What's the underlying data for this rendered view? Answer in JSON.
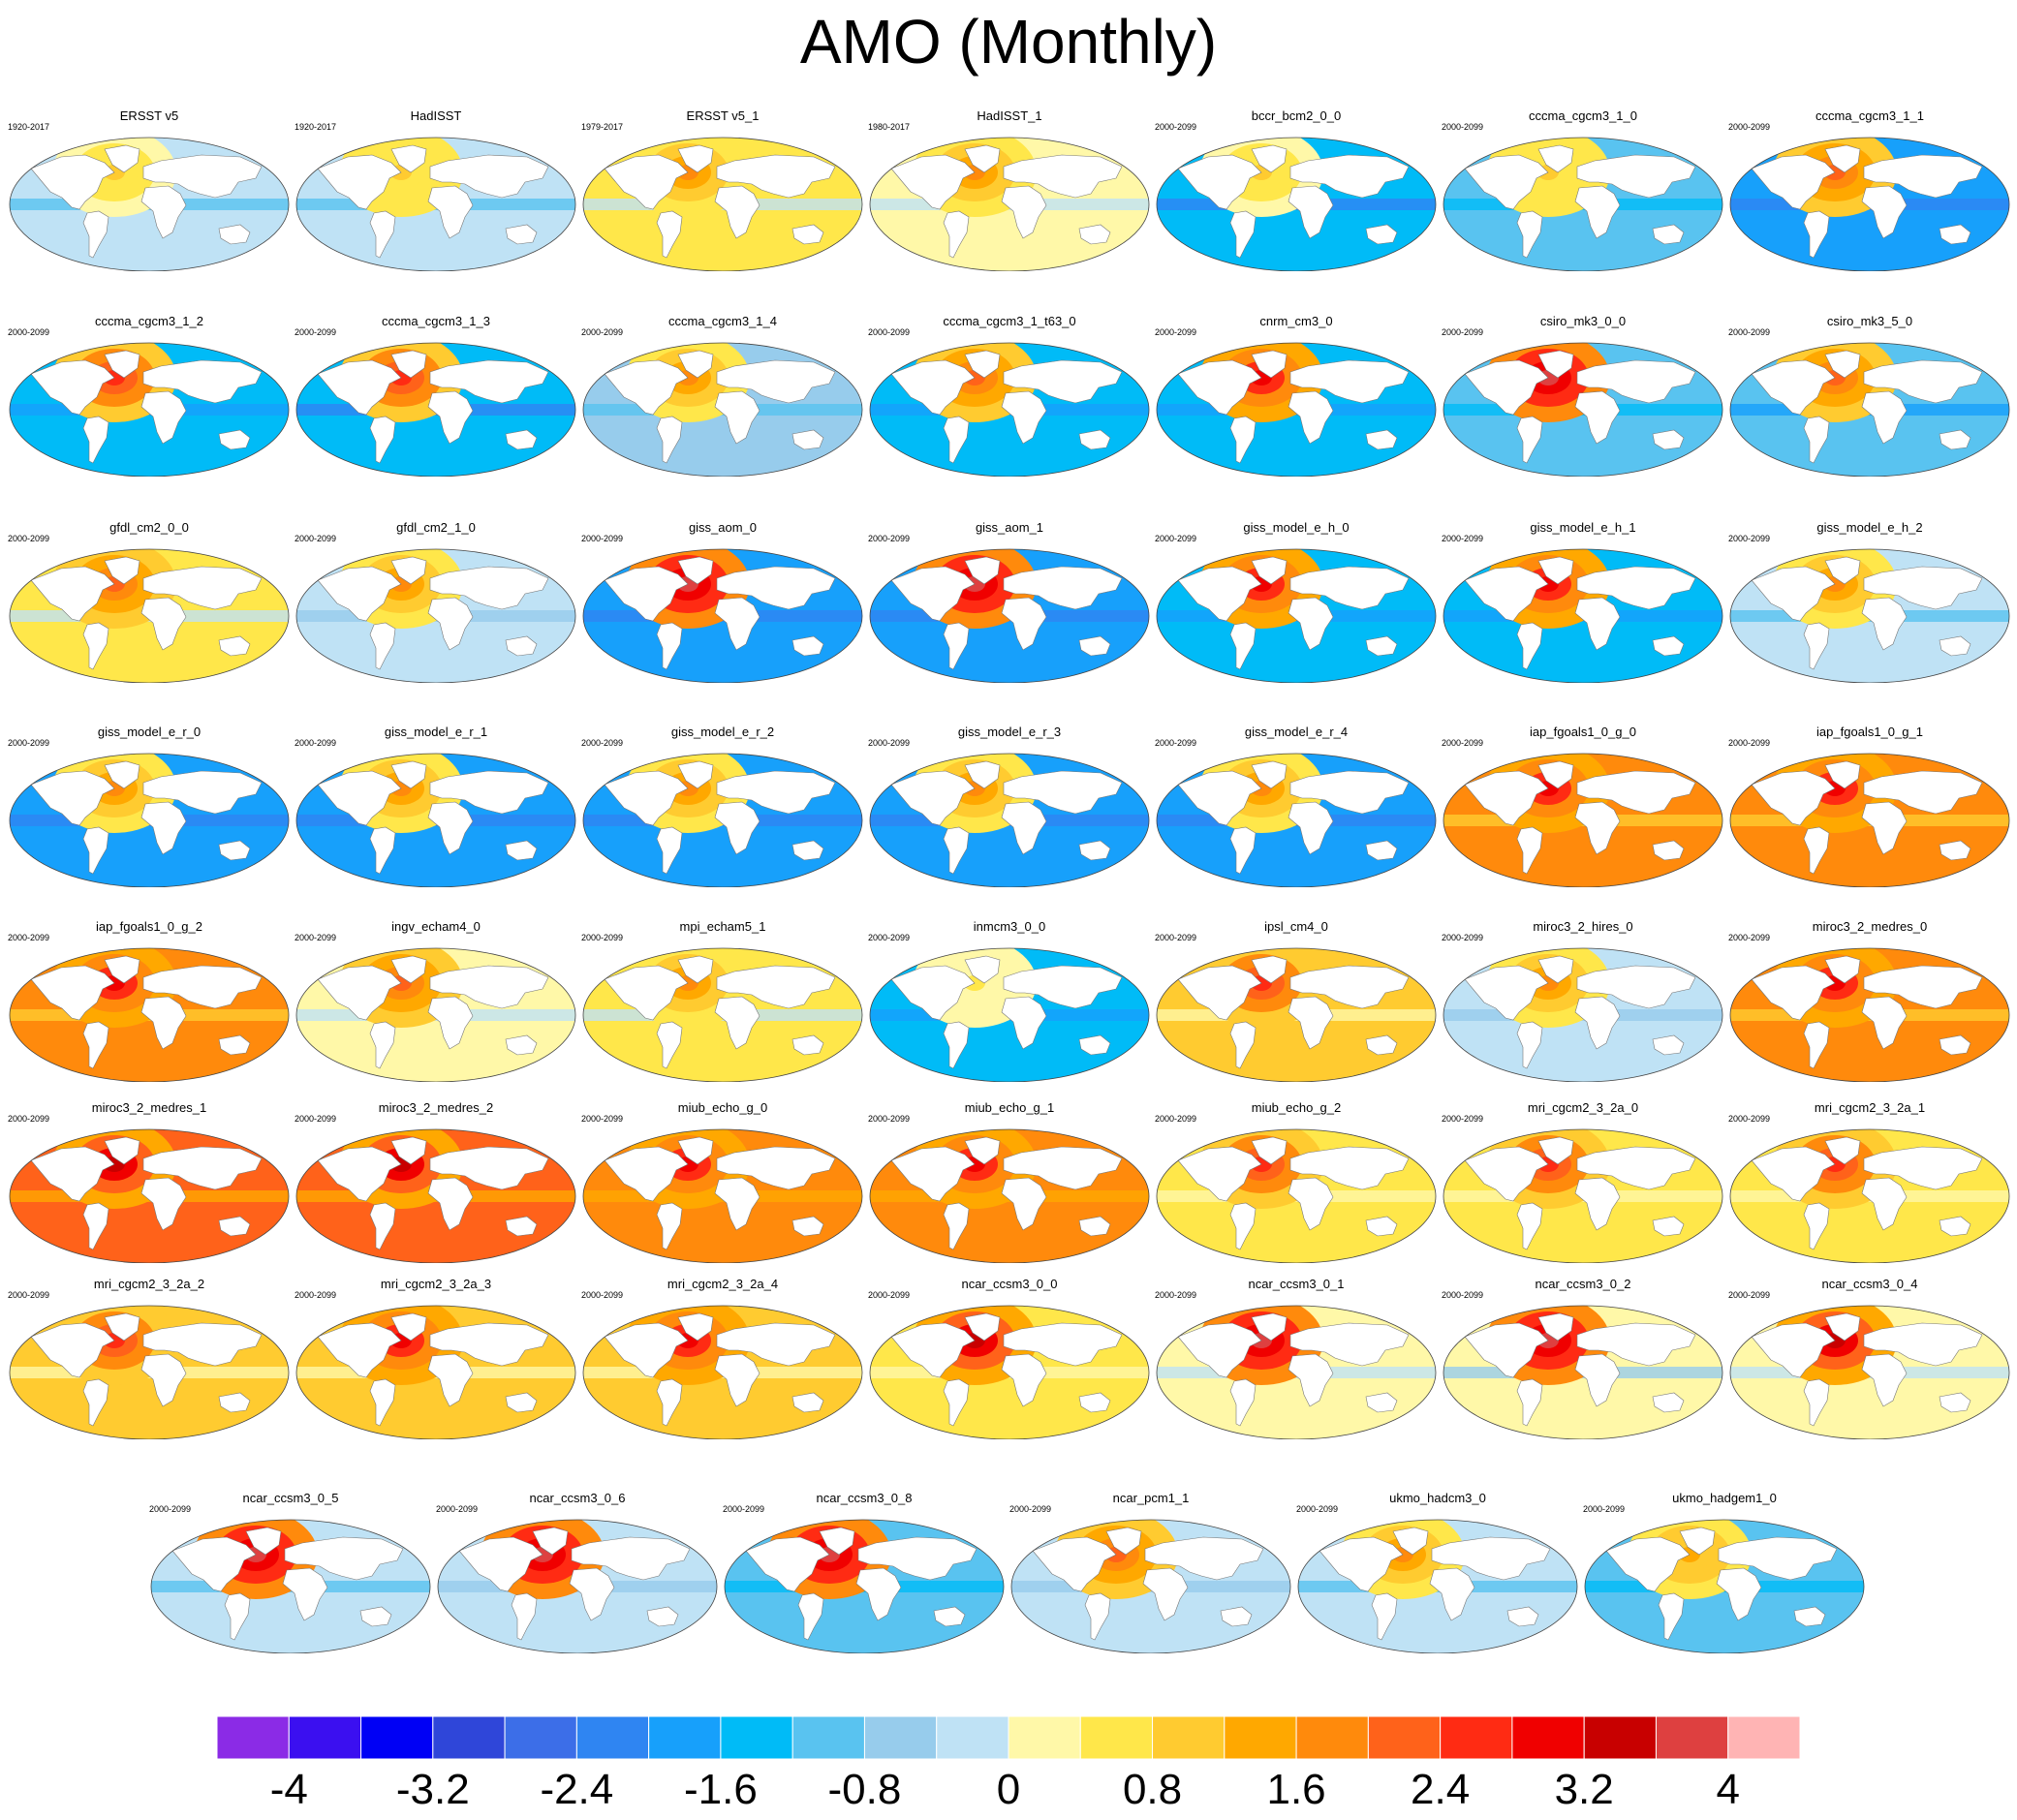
{
  "title": "AMO (Monthly)",
  "chart_data": {
    "type": "heatmap",
    "title": "AMO (Monthly)",
    "colorbar": {
      "levels": [
        -4,
        -3.6,
        -3.2,
        -2.8,
        -2.4,
        -2.0,
        -1.6,
        -1.2,
        -0.8,
        -0.4,
        0,
        0.4,
        0.8,
        1.2,
        1.6,
        2.0,
        2.4,
        2.8,
        3.2,
        3.6,
        4
      ],
      "tick_labels": [
        "-4",
        "-3.2",
        "-2.4",
        "-1.6",
        "-0.8",
        "0",
        "0.8",
        "1.6",
        "2.4",
        "3.2",
        "4"
      ],
      "colors": [
        "#8b2be6",
        "#3b0ff0",
        "#0000f5",
        "#2f46d9",
        "#3c6ee8",
        "#2f85f2",
        "#17a0fb",
        "#00bbf7",
        "#59c3f0",
        "#97ccec",
        "#bfe2f5",
        "#fff8a8",
        "#ffe74a",
        "#ffcb30",
        "#ffa800",
        "#ff8a0c",
        "#ff621a",
        "#ff2b13",
        "#f00000",
        "#c80000",
        "#de4040",
        "#ffb4b4"
      ]
    },
    "panels": [
      {
        "name": "ERSST v5",
        "period": "1920-2017",
        "amo": 0.8,
        "global": -0.4
      },
      {
        "name": "HadISST",
        "period": "1920-2017",
        "amo": 0.9,
        "global": -0.4
      },
      {
        "name": "ERSST v5_1",
        "period": "1979-2017",
        "amo": 1.6,
        "global": 0.4
      },
      {
        "name": "HadISST_1",
        "period": "1980-2017",
        "amo": 1.6,
        "global": 0.3
      },
      {
        "name": "bccr_bcm2_0_0",
        "period": "2000-2099",
        "amo": 0.8,
        "global": -1.6
      },
      {
        "name": "cccma_cgcm3_1_0",
        "period": "2000-2099",
        "amo": 0.9,
        "global": -1.0
      },
      {
        "name": "cccma_cgcm3_1_1",
        "period": "2000-2099",
        "amo": 2.0,
        "global": -1.8
      },
      {
        "name": "cccma_cgcm3_1_2",
        "period": "2000-2099",
        "amo": 2.4,
        "global": -1.4
      },
      {
        "name": "cccma_cgcm3_1_3",
        "period": "2000-2099",
        "amo": 2.4,
        "global": -1.6
      },
      {
        "name": "cccma_cgcm3_1_4",
        "period": "2000-2099",
        "amo": 1.6,
        "global": -0.6
      },
      {
        "name": "cccma_cgcm3_1_t63_0",
        "period": "2000-2099",
        "amo": 2.0,
        "global": -1.4
      },
      {
        "name": "cnrm_cm3_0",
        "period": "2000-2099",
        "amo": 2.8,
        "global": -1.4
      },
      {
        "name": "csiro_mk3_0_0",
        "period": "2000-2099",
        "amo": 3.6,
        "global": -1.0
      },
      {
        "name": "csiro_mk3_5_0",
        "period": "2000-2099",
        "amo": 2.0,
        "global": -1.2
      },
      {
        "name": "gfdl_cm2_0_0",
        "period": "2000-2099",
        "amo": 2.0,
        "global": 0.4
      },
      {
        "name": "gfdl_cm2_1_0",
        "period": "2000-2099",
        "amo": 1.6,
        "global": -0.2
      },
      {
        "name": "giss_aom_0",
        "period": "2000-2099",
        "amo": 3.6,
        "global": -1.8
      },
      {
        "name": "giss_aom_1",
        "period": "2000-2099",
        "amo": 3.6,
        "global": -1.8
      },
      {
        "name": "giss_model_e_h_0",
        "period": "2000-2099",
        "amo": 2.8,
        "global": -1.4
      },
      {
        "name": "giss_model_e_h_1",
        "period": "2000-2099",
        "amo": 2.8,
        "global": -1.4
      },
      {
        "name": "giss_model_e_h_2",
        "period": "2000-2099",
        "amo": 1.6,
        "global": -0.4
      },
      {
        "name": "giss_model_e_r_0",
        "period": "2000-2099",
        "amo": 1.6,
        "global": -1.8
      },
      {
        "name": "giss_model_e_r_1",
        "period": "2000-2099",
        "amo": 1.6,
        "global": -1.8
      },
      {
        "name": "giss_model_e_r_2",
        "period": "2000-2099",
        "amo": 1.6,
        "global": -1.8
      },
      {
        "name": "giss_model_e_r_3",
        "period": "2000-2099",
        "amo": 1.6,
        "global": -1.8
      },
      {
        "name": "giss_model_e_r_4",
        "period": "2000-2099",
        "amo": 1.6,
        "global": -1.8
      },
      {
        "name": "iap_fgoals1_0_g_0",
        "period": "2000-2099",
        "amo": 2.8,
        "global": 1.6
      },
      {
        "name": "iap_fgoals1_0_g_1",
        "period": "2000-2099",
        "amo": 2.8,
        "global": 1.6
      },
      {
        "name": "iap_fgoals1_0_g_2",
        "period": "2000-2099",
        "amo": 2.8,
        "global": 1.6
      },
      {
        "name": "ingv_echam4_0",
        "period": "2000-2099",
        "amo": 2.0,
        "global": 0.2
      },
      {
        "name": "mpi_echam5_1",
        "period": "2000-2099",
        "amo": 1.6,
        "global": 0.4
      },
      {
        "name": "inmcm3_0_0",
        "period": "2000-2099",
        "amo": 0.4,
        "global": -1.4
      },
      {
        "name": "ipsl_cm4_0",
        "period": "2000-2099",
        "amo": 2.4,
        "global": 0.8
      },
      {
        "name": "miroc3_2_hires_0",
        "period": "2000-2099",
        "amo": 1.6,
        "global": -0.2
      },
      {
        "name": "miroc3_2_medres_0",
        "period": "2000-2099",
        "amo": 2.8,
        "global": 1.6
      },
      {
        "name": "miroc3_2_medres_1",
        "period": "2000-2099",
        "amo": 3.2,
        "global": 2.0
      },
      {
        "name": "miroc3_2_medres_2",
        "period": "2000-2099",
        "amo": 3.2,
        "global": 2.0
      },
      {
        "name": "miub_echo_g_0",
        "period": "2000-2099",
        "amo": 2.8,
        "global": 1.8
      },
      {
        "name": "miub_echo_g_1",
        "period": "2000-2099",
        "amo": 2.8,
        "global": 1.8
      },
      {
        "name": "miub_echo_g_2",
        "period": "2000-2099",
        "amo": 2.4,
        "global": 0.6
      },
      {
        "name": "mri_cgcm2_3_2a_0",
        "period": "2000-2099",
        "amo": 2.4,
        "global": 0.6
      },
      {
        "name": "mri_cgcm2_3_2a_1",
        "period": "2000-2099",
        "amo": 2.4,
        "global": 0.6
      },
      {
        "name": "mri_cgcm2_3_2a_2",
        "period": "2000-2099",
        "amo": 2.4,
        "global": 0.8
      },
      {
        "name": "mri_cgcm2_3_2a_3",
        "period": "2000-2099",
        "amo": 2.8,
        "global": 0.8
      },
      {
        "name": "mri_cgcm2_3_2a_4",
        "period": "2000-2099",
        "amo": 2.8,
        "global": 0.8
      },
      {
        "name": "ncar_ccsm3_0_0",
        "period": "2000-2099",
        "amo": 3.2,
        "global": 0.6
      },
      {
        "name": "ncar_ccsm3_0_1",
        "period": "2000-2099",
        "amo": 3.6,
        "global": 0.2
      },
      {
        "name": "ncar_ccsm3_0_2",
        "period": "2000-2099",
        "amo": 3.6,
        "global": 0.1
      },
      {
        "name": "ncar_ccsm3_0_4",
        "period": "2000-2099",
        "amo": 3.2,
        "global": 0.2
      },
      {
        "name": "ncar_ccsm3_0_5",
        "period": "2000-2099",
        "amo": 3.6,
        "global": -0.4
      },
      {
        "name": "ncar_ccsm3_0_6",
        "period": "2000-2099",
        "amo": 3.6,
        "global": -0.2
      },
      {
        "name": "ncar_ccsm3_0_8",
        "period": "2000-2099",
        "amo": 3.6,
        "global": -1.0
      },
      {
        "name": "ncar_pcm1_1",
        "period": "2000-2099",
        "amo": 2.0,
        "global": -0.2
      },
      {
        "name": "ukmo_hadcm3_0",
        "period": "2000-2099",
        "amo": 1.6,
        "global": -0.4
      },
      {
        "name": "ukmo_hadgem1_0",
        "period": "2000-2099",
        "amo": 1.2,
        "global": -1.0
      }
    ]
  }
}
